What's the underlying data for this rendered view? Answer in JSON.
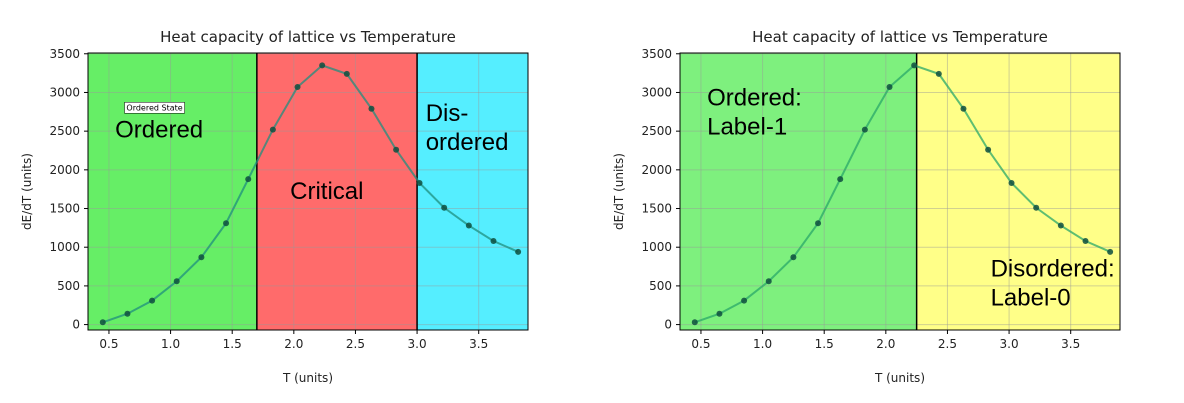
{
  "chart_data": [
    {
      "type": "line",
      "title": "Heat capacity of lattice vs Temperature",
      "xlabel": "T (units)",
      "ylabel": "dE/dT (units)",
      "xlim": [
        0.33,
        3.9
      ],
      "ylim": [
        -70,
        3510
      ],
      "xticks": [
        0.5,
        1.0,
        1.5,
        2.0,
        2.5,
        3.0,
        3.5
      ],
      "xtick_labels": [
        "0.5",
        "1.0",
        "1.5",
        "2.0",
        "2.5",
        "3.0",
        "3.5"
      ],
      "yticks": [
        0,
        500,
        1000,
        1500,
        2000,
        2500,
        3000,
        3500
      ],
      "ytick_labels": [
        "0",
        "500",
        "1000",
        "1500",
        "2000",
        "2500",
        "3000",
        "3500"
      ],
      "grid": true,
      "line_color": "#1f8f7f",
      "series": [
        {
          "x": [
            0.45,
            0.65,
            0.85,
            1.05,
            1.25,
            1.45,
            1.63,
            1.83,
            2.03,
            2.23,
            2.43,
            2.63,
            2.83,
            3.02,
            3.22,
            3.42,
            3.62,
            3.82
          ],
          "values": [
            30,
            140,
            310,
            560,
            870,
            1310,
            1880,
            2520,
            3070,
            3350,
            3240,
            2790,
            2260,
            1830,
            1510,
            1280,
            1080,
            940
          ]
        }
      ],
      "regions": [
        {
          "x0": 0.33,
          "x1": 1.7,
          "color": "#66ee66",
          "label_lines": [
            "Ordered"
          ],
          "label_anchor_x": 0.55,
          "label_y": 2420
        },
        {
          "x0": 1.7,
          "x1": 3.0,
          "color": "#ff6b6b",
          "label_lines": [
            "Critical"
          ],
          "label_anchor_x": 1.97,
          "label_y": 1620
        },
        {
          "x0": 3.0,
          "x1": 3.9,
          "color": "#55eeff",
          "label_lines": [
            "Dis-",
            "ordered"
          ],
          "label_anchor_x": 3.07,
          "label_y": 2630
        }
      ],
      "small_annotation": {
        "text": "Ordered State",
        "x": 0.87,
        "y": 2770
      }
    },
    {
      "type": "line",
      "title": "Heat capacity of lattice vs Temperature",
      "xlabel": "T (units)",
      "ylabel": "dE/dT (units)",
      "xlim": [
        0.33,
        3.9
      ],
      "ylim": [
        -70,
        3510
      ],
      "xticks": [
        0.5,
        1.0,
        1.5,
        2.0,
        2.5,
        3.0,
        3.5
      ],
      "xtick_labels": [
        "0.5",
        "1.0",
        "1.5",
        "2.0",
        "2.5",
        "3.0",
        "3.5"
      ],
      "yticks": [
        0,
        500,
        1000,
        1500,
        2000,
        2500,
        3000,
        3500
      ],
      "ytick_labels": [
        "0",
        "500",
        "1000",
        "1500",
        "2000",
        "2500",
        "3000",
        "3500"
      ],
      "grid": true,
      "line_color": "#2aa86a",
      "series": [
        {
          "x": [
            0.45,
            0.65,
            0.85,
            1.05,
            1.25,
            1.45,
            1.63,
            1.83,
            2.03,
            2.23,
            2.43,
            2.63,
            2.83,
            3.02,
            3.22,
            3.42,
            3.62,
            3.82
          ],
          "values": [
            30,
            140,
            310,
            560,
            870,
            1310,
            1880,
            2520,
            3070,
            3350,
            3240,
            2790,
            2260,
            1830,
            1510,
            1280,
            1080,
            940
          ]
        }
      ],
      "regions": [
        {
          "x0": 0.33,
          "x1": 2.25,
          "color": "#7ef07e",
          "label_lines": [
            "Ordered:",
            "Label-1"
          ],
          "label_anchor_x": 0.55,
          "label_y": 2830
        },
        {
          "x0": 2.25,
          "x1": 3.9,
          "color": "#ffff88",
          "label_lines": [
            "Disordered:",
            "Label-0"
          ],
          "label_anchor_x": 2.85,
          "label_y": 620
        }
      ]
    }
  ]
}
